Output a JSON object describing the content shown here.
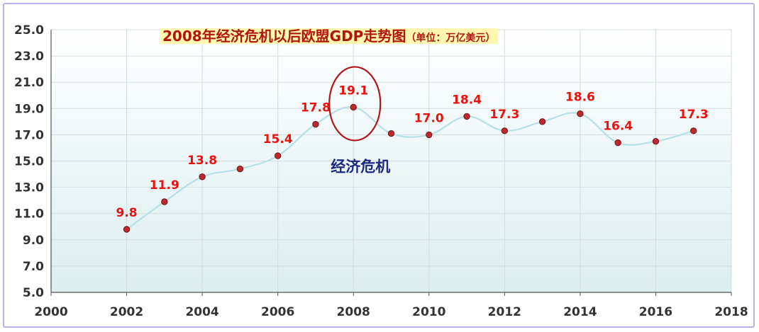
{
  "chart_data": {
    "type": "line",
    "title": "2008年经济危机以后欧盟GDP走势图",
    "title_unit": "（单位：万亿美元）",
    "xlabel": "",
    "ylabel": "",
    "xlim": [
      2000,
      2018
    ],
    "ylim": [
      5.0,
      25.0
    ],
    "x_ticks": [
      "2000",
      "2002",
      "2004",
      "2006",
      "2008",
      "2010",
      "2012",
      "2014",
      "2016",
      "2018"
    ],
    "y_ticks": [
      "5.0",
      "7.0",
      "9.0",
      "11.0",
      "13.0",
      "15.0",
      "17.0",
      "19.0",
      "21.0",
      "23.0",
      "25.0"
    ],
    "grid": true,
    "smooth": true,
    "series": [
      {
        "x": [
          2002,
          2003,
          2004,
          2005,
          2006,
          2007,
          2008,
          2009,
          2010,
          2011,
          2012,
          2013,
          2014,
          2015,
          2016,
          2017
        ],
        "values": [
          9.8,
          11.9,
          13.8,
          14.4,
          15.4,
          17.8,
          19.1,
          17.1,
          17.0,
          18.4,
          17.3,
          18.0,
          18.6,
          16.4,
          16.5,
          17.3
        ]
      }
    ],
    "data_labels": [
      {
        "x": 2002,
        "text": "9.8"
      },
      {
        "x": 2003,
        "text": "11.9"
      },
      {
        "x": 2004,
        "text": "13.8"
      },
      {
        "x": 2006,
        "text": "15.4"
      },
      {
        "x": 2007,
        "text": "17.8"
      },
      {
        "x": 2008,
        "text": "19.1"
      },
      {
        "x": 2010,
        "text": "17.0"
      },
      {
        "x": 2011,
        "text": "18.4"
      },
      {
        "x": 2012,
        "text": "17.3"
      },
      {
        "x": 2014,
        "text": "18.6"
      },
      {
        "x": 2015,
        "text": "16.4"
      },
      {
        "x": 2017,
        "text": "17.3"
      }
    ],
    "annotation": {
      "text": "经济危机",
      "x": 2008,
      "y": 19.1
    },
    "colors": {
      "line": "#b4e0e6",
      "marker": "#c0282b",
      "marker_edge": "#6a1a1a",
      "data_label": "#e8130f",
      "circle": "#b01818",
      "title": "#b0160e",
      "title_highlight": "#fff7b0",
      "annotation": "#1d2a80",
      "grid": "#d5dce0",
      "plot_bg_top": "#ffffff",
      "plot_bg_bottom": "#dbeef0"
    }
  }
}
